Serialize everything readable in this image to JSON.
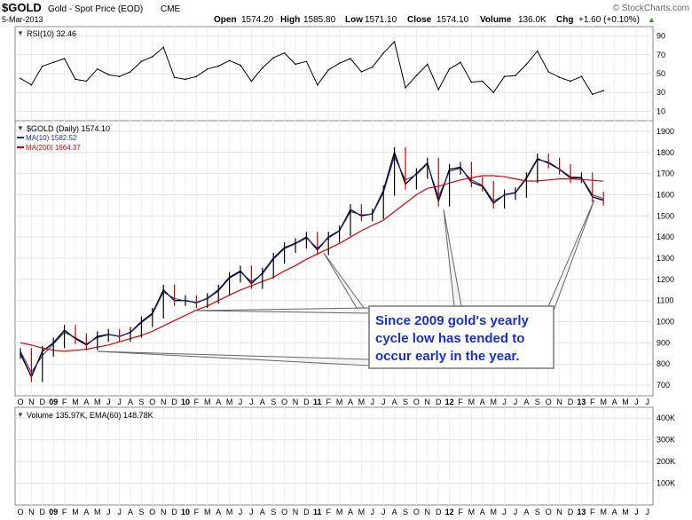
{
  "header": {
    "symbol": "$GOLD",
    "name": "Gold - Spot Price (EOD)",
    "exchange": "CME",
    "date": "5-Mar-2013",
    "open_label": "Open",
    "open": "1574.20",
    "high_label": "High",
    "high": "1585.80",
    "low_label": "Low",
    "low": "1571.10",
    "close_label": "Close",
    "close": "1574.10",
    "volume_label": "Volume",
    "volume": "136.0K",
    "chg_label": "Chg",
    "chg": "+1.60 (+0.10%)",
    "chg_arrow": "▲",
    "watermark": "© StockCharts.com"
  },
  "colors": {
    "price": "#000000",
    "price_down": "#cc0000",
    "ma10": "#1f2f9f",
    "ma200": "#e00000",
    "rsi": "#000000",
    "callout_text": "#1a2fd0",
    "panel_border": "#888888"
  },
  "chart_data": [
    {
      "type": "line",
      "panel": "rsi",
      "legend": "RSI(10) 32.46",
      "yticks": [
        "90",
        "70",
        "50",
        "30",
        "10"
      ],
      "ylim": [
        0,
        100
      ],
      "x": [
        "2008-10",
        "2008-11",
        "2008-12",
        "2009-01",
        "2009-02",
        "2009-03",
        "2009-04",
        "2009-05",
        "2009-06",
        "2009-07",
        "2009-08",
        "2009-09",
        "2009-10",
        "2009-11",
        "2009-12",
        "2010-01",
        "2010-02",
        "2010-03",
        "2010-04",
        "2010-05",
        "2010-06",
        "2010-07",
        "2010-08",
        "2010-09",
        "2010-10",
        "2010-11",
        "2010-12",
        "2011-01",
        "2011-02",
        "2011-03",
        "2011-04",
        "2011-05",
        "2011-06",
        "2011-07",
        "2011-08",
        "2011-09",
        "2011-10",
        "2011-11",
        "2011-12",
        "2012-01",
        "2012-02",
        "2012-03",
        "2012-04",
        "2012-05",
        "2012-06",
        "2012-07",
        "2012-08",
        "2012-09",
        "2012-10",
        "2012-11",
        "2012-12",
        "2013-01",
        "2013-02",
        "2013-03"
      ],
      "values": [
        45,
        38,
        58,
        62,
        66,
        44,
        42,
        55,
        49,
        47,
        52,
        63,
        68,
        78,
        46,
        44,
        47,
        55,
        58,
        64,
        59,
        42,
        56,
        67,
        72,
        60,
        63,
        38,
        54,
        61,
        66,
        52,
        57,
        72,
        84,
        35,
        48,
        60,
        33,
        55,
        62,
        41,
        42,
        30,
        47,
        48,
        60,
        74,
        52,
        46,
        42,
        47,
        28,
        32
      ]
    },
    {
      "type": "line",
      "panel": "price",
      "legend_main": "$GOLD (Daily) 1574.10",
      "legend_ma10": "MA(10) 1582.52",
      "legend_ma200": "MA(200) 1664.37",
      "yticks": [
        "1900",
        "1800",
        "1700",
        "1600",
        "1500",
        "1400",
        "1300",
        "1200",
        "1100",
        "1000",
        "900",
        "800",
        "700"
      ],
      "ylim": [
        650,
        1950
      ],
      "x": [
        "2008-10",
        "2008-11",
        "2008-12",
        "2009-01",
        "2009-02",
        "2009-03",
        "2009-04",
        "2009-05",
        "2009-06",
        "2009-07",
        "2009-08",
        "2009-09",
        "2009-10",
        "2009-11",
        "2009-12",
        "2010-01",
        "2010-02",
        "2010-03",
        "2010-04",
        "2010-05",
        "2010-06",
        "2010-07",
        "2010-08",
        "2010-09",
        "2010-10",
        "2010-11",
        "2010-12",
        "2011-01",
        "2011-02",
        "2011-03",
        "2011-04",
        "2011-05",
        "2011-06",
        "2011-07",
        "2011-08",
        "2011-09",
        "2011-10",
        "2011-11",
        "2011-12",
        "2012-01",
        "2012-02",
        "2012-03",
        "2012-04",
        "2012-05",
        "2012-06",
        "2012-07",
        "2012-08",
        "2012-09",
        "2012-10",
        "2012-11",
        "2012-12",
        "2013-01",
        "2013-02",
        "2013-03"
      ],
      "series": [
        {
          "name": "$GOLD (Daily)",
          "values": [
            850,
            740,
            860,
            900,
            960,
            920,
            890,
            930,
            940,
            930,
            950,
            1000,
            1040,
            1150,
            1100,
            1100,
            1090,
            1110,
            1150,
            1210,
            1240,
            1180,
            1230,
            1300,
            1350,
            1370,
            1400,
            1340,
            1400,
            1430,
            1530,
            1500,
            1510,
            1620,
            1800,
            1650,
            1700,
            1750,
            1570,
            1720,
            1730,
            1660,
            1640,
            1560,
            1600,
            1610,
            1680,
            1770,
            1750,
            1720,
            1680,
            1680,
            1590,
            1574
          ]
        },
        {
          "name": "MA(10)",
          "values": [
            860,
            760,
            840,
            895,
            950,
            925,
            895,
            925,
            938,
            932,
            948,
            995,
            1035,
            1140,
            1110,
            1098,
            1092,
            1108,
            1145,
            1205,
            1235,
            1190,
            1225,
            1295,
            1345,
            1368,
            1395,
            1348,
            1395,
            1428,
            1520,
            1505,
            1508,
            1610,
            1780,
            1670,
            1695,
            1745,
            1590,
            1710,
            1725,
            1670,
            1645,
            1570,
            1598,
            1608,
            1675,
            1765,
            1755,
            1722,
            1685,
            1682,
            1600,
            1582
          ]
        },
        {
          "name": "MA(200)",
          "values": [
            900,
            890,
            875,
            865,
            860,
            865,
            870,
            880,
            890,
            905,
            920,
            935,
            955,
            980,
            1005,
            1030,
            1055,
            1075,
            1100,
            1125,
            1150,
            1170,
            1190,
            1210,
            1240,
            1265,
            1295,
            1320,
            1345,
            1370,
            1400,
            1430,
            1455,
            1480,
            1520,
            1560,
            1600,
            1630,
            1640,
            1655,
            1670,
            1680,
            1690,
            1690,
            1685,
            1675,
            1665,
            1665,
            1670,
            1675,
            1675,
            1672,
            1668,
            1664
          ]
        }
      ]
    },
    {
      "type": "area",
      "panel": "volume",
      "legend": "Volume 135.97K, EMA(60) 148.78K",
      "yticks": [
        "400K",
        "300K",
        "200K",
        "100K"
      ],
      "ylim": [
        0,
        450000
      ],
      "x": [],
      "values": []
    }
  ],
  "xaxis": {
    "labels": [
      "O",
      "N",
      "D",
      "09",
      "F",
      "M",
      "A",
      "M",
      "J",
      "J",
      "A",
      "S",
      "O",
      "N",
      "D",
      "10",
      "F",
      "M",
      "A",
      "M",
      "J",
      "J",
      "A",
      "S",
      "O",
      "N",
      "D",
      "11",
      "F",
      "M",
      "A",
      "M",
      "J",
      "J",
      "A",
      "S",
      "O",
      "N",
      "D",
      "12",
      "F",
      "M",
      "A",
      "M",
      "J",
      "J",
      "A",
      "S",
      "O",
      "N",
      "D",
      "13",
      "F",
      "M",
      "A",
      "M",
      "J",
      "J"
    ],
    "bold": [
      "09",
      "10",
      "11",
      "12",
      "13"
    ]
  },
  "callout": {
    "line1": "Since 2009 gold's yearly",
    "line2": "cycle low has tended to",
    "line3": "occur early in the year."
  }
}
